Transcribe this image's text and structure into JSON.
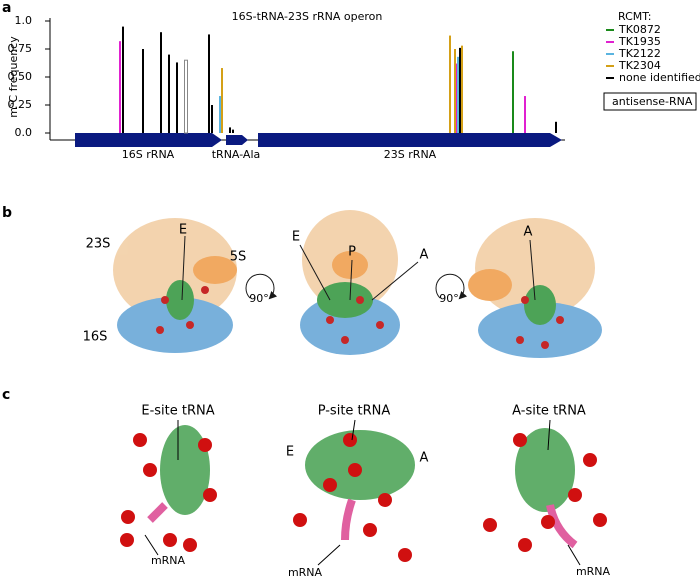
{
  "chart_data": {
    "type": "bar",
    "title": "16S-tRNA-23S rRNA operon",
    "y_label": "m⁵C frequency",
    "xlim": [
      50,
      565
    ],
    "ylim": [
      0,
      1.0
    ],
    "yticks": [
      {
        "value": 0,
        "label": "0.0"
      },
      0.25,
      {
        "value": 0.5,
        "label": "0.50"
      },
      0.75,
      {
        "value": 1.0,
        "label": "1.0"
      }
    ],
    "legend_title": "RCMT:",
    "genes": [
      "16S rRNA",
      "tRNA-Ala",
      "23S rRNA"
    ],
    "series": [
      {
        "name": "TK0872",
        "color": "#1a8a1a",
        "x": [
          513
        ],
        "values": [
          0.73
        ]
      },
      {
        "name": "TK1935",
        "color": "#e020d0",
        "x": [
          120,
          457,
          525
        ],
        "values": [
          0.82,
          0.62,
          0.33
        ]
      },
      {
        "name": "TK2122",
        "color": "#5ab4e0",
        "x": [
          220,
          458
        ],
        "values": [
          0.33,
          0.68
        ]
      },
      {
        "name": "TK2304",
        "color": "#d4a017",
        "x": [
          222,
          450,
          455,
          462
        ],
        "values": [
          0.58,
          0.87,
          0.75,
          0.78
        ]
      },
      {
        "name": "none identified",
        "color": "#000000",
        "x": [
          123,
          143,
          161,
          169,
          177,
          209,
          212,
          230,
          233,
          460,
          556
        ],
        "values": [
          0.95,
          0.75,
          0.9,
          0.7,
          0.63,
          0.88,
          0.25,
          0.05,
          0.03,
          0.76,
          0.1
        ]
      },
      {
        "name": "antisense-RNA",
        "color": "#888888",
        "outline": true,
        "x": [
          186
        ],
        "values": [
          0.65
        ]
      }
    ]
  },
  "panels": {
    "a": "a",
    "b": "b",
    "c": "c"
  },
  "panel_b": {
    "labels": [
      "E",
      "23S",
      "5S",
      "16S",
      "90°",
      "E",
      "P",
      "A",
      "90°",
      "A"
    ]
  },
  "panel_c": {
    "labels": [
      "E-site tRNA",
      "mRNA",
      "P-site tRNA",
      "E",
      "A",
      "mRNA",
      "A-site tRNA",
      "mRNA"
    ]
  }
}
